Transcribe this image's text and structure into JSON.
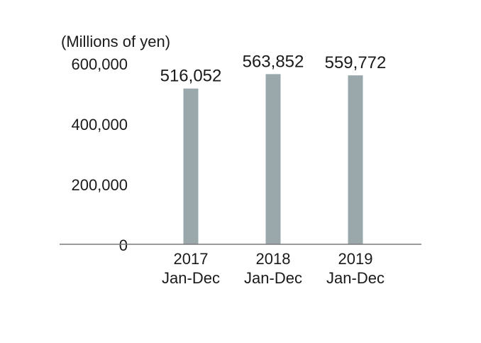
{
  "chart_data": {
    "type": "bar",
    "unit_label": "(Millions of yen)",
    "categories": [
      {
        "year": "2017",
        "period": "Jan-Dec"
      },
      {
        "year": "2018",
        "period": "Jan-Dec"
      },
      {
        "year": "2019",
        "period": "Jan-Dec"
      }
    ],
    "values": [
      516052,
      563852,
      559772
    ],
    "value_labels": [
      "516,052",
      "563,852",
      "559,772"
    ],
    "yticks": [
      0,
      200000,
      400000,
      600000
    ],
    "ytick_labels": [
      "0",
      "200,000",
      "400,000",
      "600,000"
    ],
    "ylim": [
      0,
      600000
    ],
    "grid": false,
    "legend": "none",
    "bar_color": "#9aa7ab",
    "axis_color": "#7a7a7a"
  }
}
